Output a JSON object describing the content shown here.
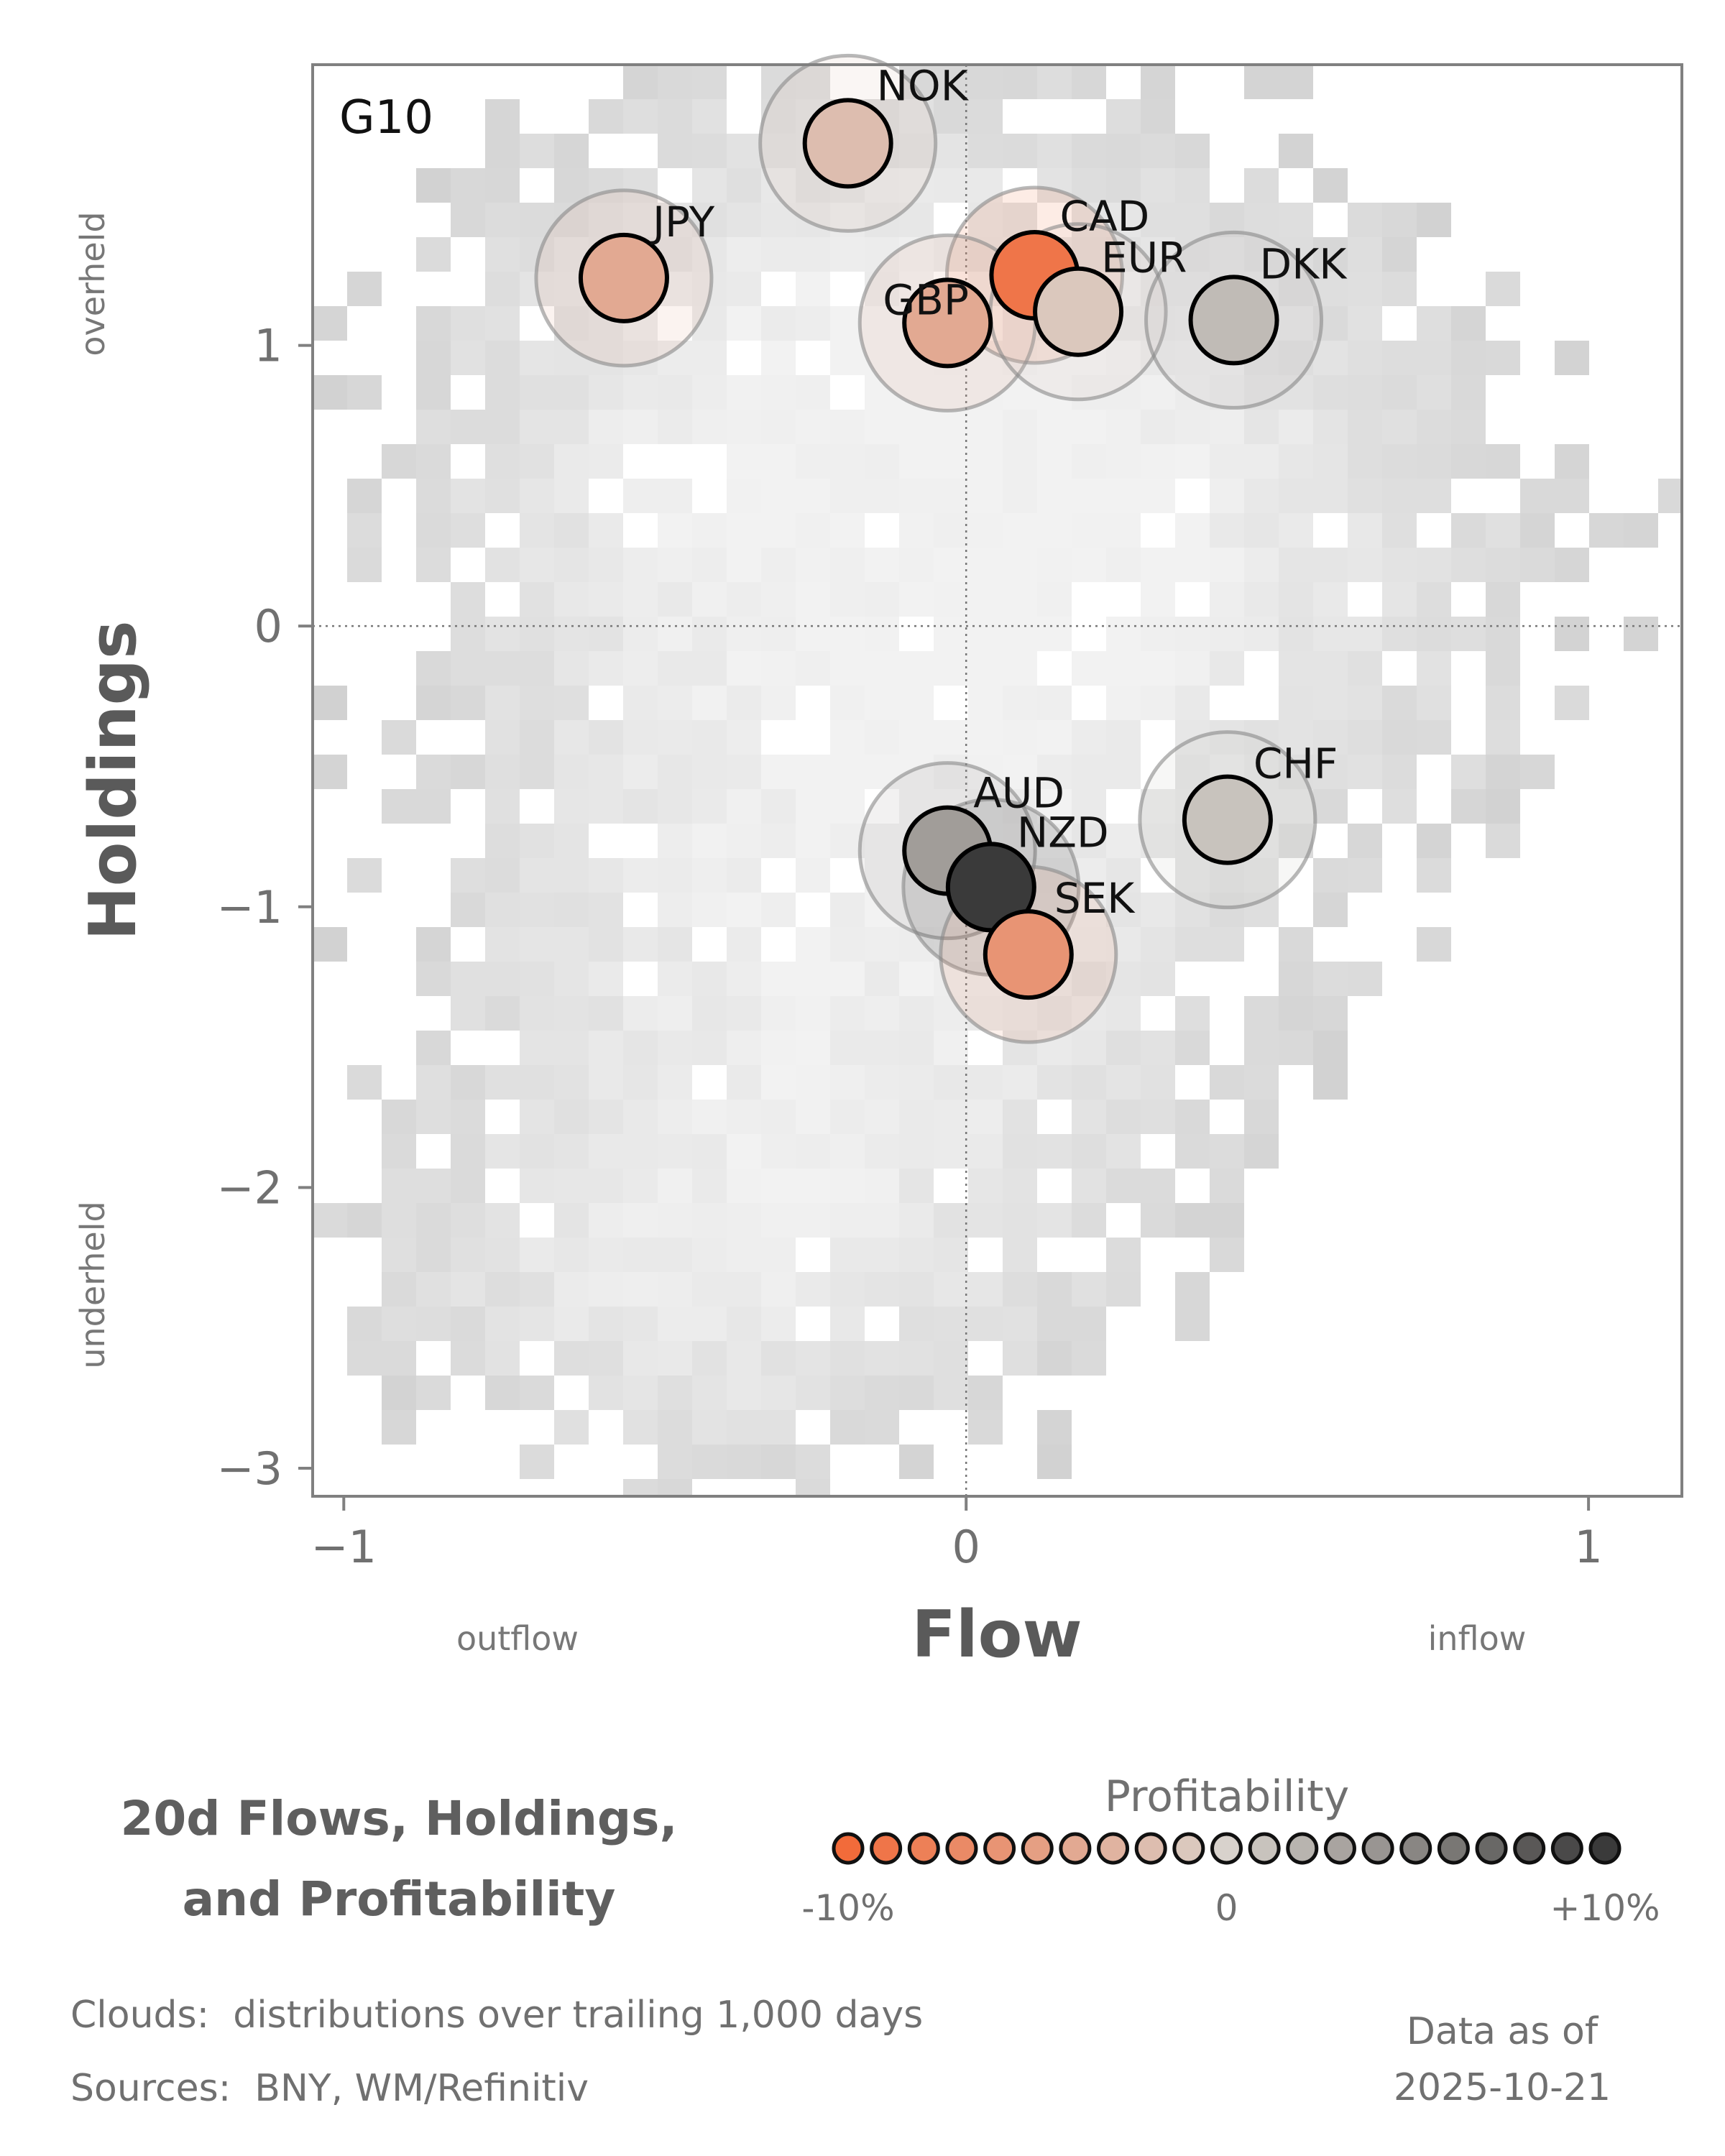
{
  "chart_data": {
    "type": "scatter",
    "panel_tag": "G10",
    "xlabel": "Flow",
    "ylabel": "Holdings",
    "xlim": [
      -1.05,
      1.15
    ],
    "ylim": [
      -3.1,
      2.0
    ],
    "xticks": [
      -1,
      0,
      1
    ],
    "xtick_labels": [
      "−1",
      "0",
      "1"
    ],
    "yticks": [
      -3,
      -2,
      -1,
      0,
      1
    ],
    "ytick_labels": [
      "−3",
      "−2",
      "−1",
      "0",
      "1"
    ],
    "x_side_labels": {
      "low": "outflow",
      "high": "inflow"
    },
    "y_side_labels": {
      "low": "underheld",
      "high": "overheld"
    },
    "reference_lines": {
      "x": 0,
      "y": 0,
      "style": "dotted"
    },
    "points": [
      {
        "label": "NOK",
        "x": -0.19,
        "y": 1.72,
        "profitability": -2.0
      },
      {
        "label": "JPY",
        "x": -0.55,
        "y": 1.24,
        "profitability": -4.0
      },
      {
        "label": "CAD",
        "x": 0.11,
        "y": 1.25,
        "profitability": -9.0
      },
      {
        "label": "GBP",
        "x": -0.03,
        "y": 1.08,
        "profitability": -4.0
      },
      {
        "label": "EUR",
        "x": 0.18,
        "y": 1.12,
        "profitability": -1.0
      },
      {
        "label": "DKK",
        "x": 0.43,
        "y": 1.09,
        "profitability": 1.5
      },
      {
        "label": "CHF",
        "x": 0.42,
        "y": -0.69,
        "profitability": 1.0
      },
      {
        "label": "AUD",
        "x": -0.03,
        "y": -0.8,
        "profitability": 3.5
      },
      {
        "label": "NZD",
        "x": 0.04,
        "y": -0.93,
        "profitability": 10.0
      },
      {
        "label": "SEK",
        "x": 0.1,
        "y": -1.17,
        "profitability": -6.0
      }
    ],
    "colorbar": {
      "title": "Profitability",
      "min": -10,
      "max": 10,
      "steps": 21,
      "tick_labels": [
        "-10%",
        "0",
        "+10%"
      ],
      "colors": {
        "low": "#f26b3a",
        "mid": "#d8d2cc",
        "high": "#3a3a3a"
      }
    }
  },
  "subtitle_line1": "20d Flows, Holdings,",
  "subtitle_line2": "and Profitability",
  "clouds_key": "Clouds:",
  "clouds_text": "distributions over trailing 1,000 days",
  "sources_key": "Sources:",
  "sources_text": "BNY, WM/Refinitiv",
  "asof_label": "Data as of",
  "asof_date": "2025-10-21"
}
